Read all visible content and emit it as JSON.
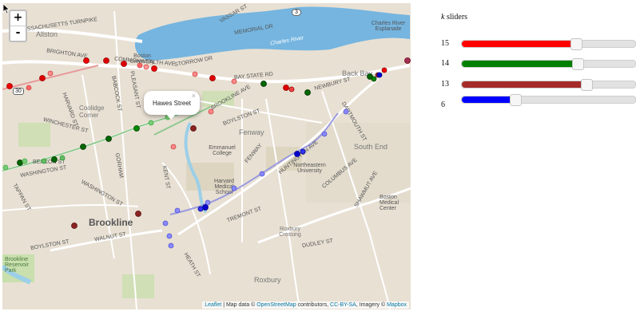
{
  "map": {
    "zoom_in_label": "+",
    "zoom_out_label": "-",
    "popup": {
      "text": "Hawes Street",
      "close": "×"
    },
    "attribution": {
      "leaflet": "Leaflet",
      "text1": " | Map data © ",
      "osm": "OpenStreetMap",
      "text2": " contributors, ",
      "license": "CC-BY-SA",
      "text3": ", Imagery © ",
      "mapbox": "Mapbox"
    },
    "labels": {
      "turnpike": "MASSACHUSETTS TURNPIKE",
      "allston": "Allston",
      "brighton_ave": "BRIGHTON AVE",
      "commonwealth": "COMMONWEALTH AVE",
      "babcock": "BABCOCK ST",
      "harvard": "HARVARD ST",
      "coolidge": "Coolidge Corner",
      "winchester": "WINCHESTER ST",
      "beacon": "BEACON ST",
      "washington": "WASHINGTON ST",
      "tappan": "TAPPAN ST",
      "brookline": "Brookline",
      "boylston": "BOYLSTON ST",
      "walnut": "WALNUT ST",
      "boston_univ": "Boston University",
      "charles_river": "Charles River",
      "storrow": "STORROW DR",
      "memorial": "MEMORIAL DR",
      "vassar": "VASSAR ST",
      "bay_state": "BAY STATE RD",
      "fenway": "Fenway",
      "boylston_st": "BOYLSTON ST",
      "emmanuel": "Emmanuel College",
      "harvard_med": "Harvard Medical School",
      "northeastern": "Northeastern University",
      "huntington": "HUNTINGTON AVE",
      "columbus": "COLUMBUS AVE",
      "tremont": "TREMONT ST",
      "back_bay": "Back Bay",
      "south_end": "South End",
      "bmc": "Boston Medical Center",
      "roxbury_crossing": "Roxbury Crossing",
      "roxbury": "Roxbury",
      "dudley": "DUDLEY ST",
      "newbury": "NEWBURY ST",
      "esplanade": "Charles River Esplanade",
      "route30": "30",
      "route3": "3",
      "heath": "HEATH ST",
      "washington2": "WASHINGTON ST",
      "brookline_park": "Brookline Reservoir Park",
      "hyde": "BROOKLINE AVE",
      "fenway2": "FENWAY",
      "kent": "KENT ST",
      "pleasant": "PLEASANT ST",
      "gorham": "GORHAM",
      "dartmouth": "DARTMOUTH ST",
      "shawmut": "SHAWMUT AVE"
    }
  },
  "panel": {
    "title_italic": "k",
    "title_rest": " sliders",
    "sliders": [
      {
        "name": "red",
        "value": "15",
        "fraction": 0.66,
        "color": "#ff0000"
      },
      {
        "name": "green",
        "value": "14",
        "fraction": 0.67,
        "color": "#008000"
      },
      {
        "name": "brown",
        "value": "13",
        "fraction": 0.72,
        "color": "#a52a2a"
      },
      {
        "name": "blue",
        "value": "6",
        "fraction": 0.31,
        "color": "#0000ff"
      }
    ]
  }
}
